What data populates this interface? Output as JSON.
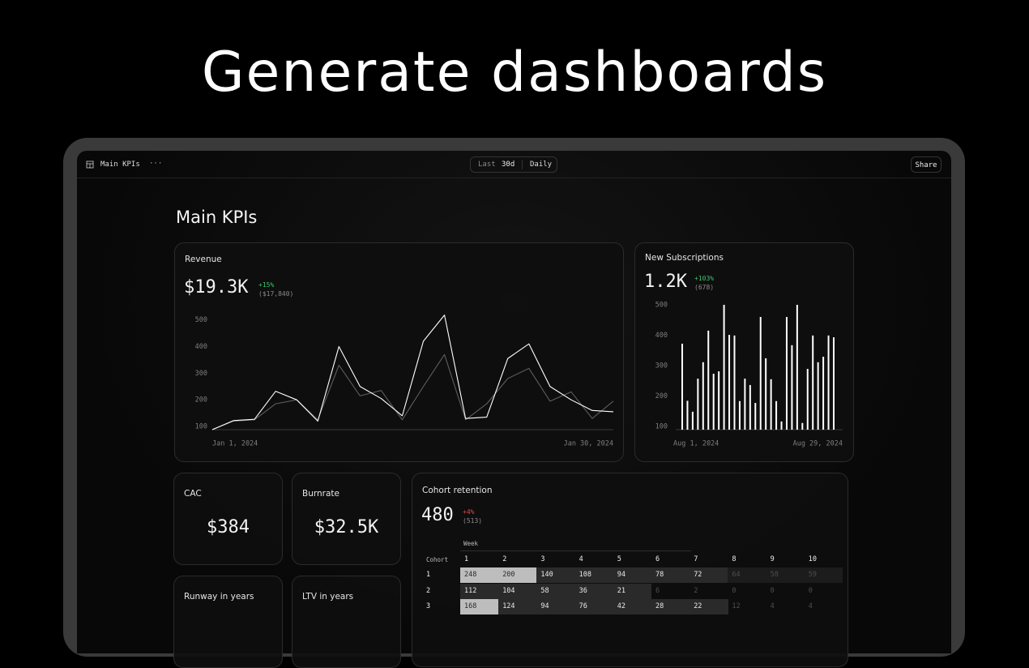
{
  "headline": "Generate dashboards",
  "toolbar": {
    "title": "Main KPIs",
    "menu": "···",
    "range_prefix": "Last",
    "range": "30d",
    "granularity": "Daily",
    "share": "Share"
  },
  "page_title": "Main KPIs",
  "chart_data": [
    {
      "type": "line",
      "title": "Revenue",
      "value": "$19.3K",
      "change": "+15%",
      "previous": "($17,840)",
      "categories": [
        "Jan 1, 2024",
        null,
        null,
        null,
        null,
        null,
        null,
        null,
        null,
        null,
        null,
        null,
        null,
        null,
        null,
        null,
        null,
        null,
        null,
        "Jan 30, 2024"
      ],
      "series": [
        {
          "color": "#5e5e5e",
          "values": [
            88,
            120,
            125,
            185,
            200,
            125,
            330,
            215,
            235,
            125,
            250,
            370,
            125,
            185,
            280,
            318,
            195,
            230,
            130,
            195
          ]
        },
        {
          "color": "#ffffff",
          "values": [
            88,
            122,
            127,
            232,
            200,
            120,
            400,
            250,
            205,
            140,
            420,
            518,
            130,
            135,
            355,
            410,
            250,
            200,
            160,
            155
          ]
        }
      ],
      "ylim": [
        88,
        520
      ],
      "yticks": [
        100,
        200,
        300,
        400,
        500
      ]
    },
    {
      "type": "bar",
      "title": "New Subscriptions",
      "value": "1.2K",
      "change": "+103%",
      "previous": "(678)",
      "categories": [
        "Aug 1, 2024",
        null,
        null,
        null,
        null,
        null,
        null,
        null,
        null,
        null,
        null,
        null,
        null,
        null,
        null,
        null,
        null,
        null,
        null,
        null,
        null,
        null,
        null,
        null,
        null,
        null,
        null,
        null,
        null,
        "Aug 29, 2024"
      ],
      "values": [
        372,
        184,
        148,
        257,
        311,
        415,
        273,
        281,
        500,
        401,
        399,
        183,
        257,
        236,
        177,
        460,
        324,
        255,
        183,
        116,
        460,
        367,
        500,
        111,
        289,
        399,
        311,
        329,
        399,
        393
      ],
      "color": "#ffffff",
      "ylim": [
        89,
        500
      ],
      "yticks": [
        100,
        200,
        300,
        400,
        500
      ]
    }
  ],
  "metrics": [
    {
      "title": "CAC",
      "value": "$384"
    },
    {
      "title": "Burnrate",
      "value": "$32.5K"
    },
    {
      "title": "Runway in years"
    },
    {
      "title": "LTV in years"
    }
  ],
  "cohort": {
    "title": "Cohort retention",
    "value": "480",
    "change": "+4%",
    "previous": "(513)",
    "group_label": "Week",
    "row_label": "Cohort",
    "columns": [
      1,
      2,
      3,
      4,
      5,
      6,
      7,
      8,
      9,
      10
    ],
    "rows": [
      {
        "cohort": 1,
        "values": [
          248,
          200,
          140,
          108,
          94,
          78,
          72,
          64,
          58,
          59
        ]
      },
      {
        "cohort": 2,
        "values": [
          112,
          104,
          58,
          36,
          21,
          6,
          2,
          0,
          0,
          0
        ]
      },
      {
        "cohort": 3,
        "values": [
          168,
          124,
          94,
          76,
          42,
          28,
          22,
          12,
          4,
          4
        ]
      }
    ]
  }
}
